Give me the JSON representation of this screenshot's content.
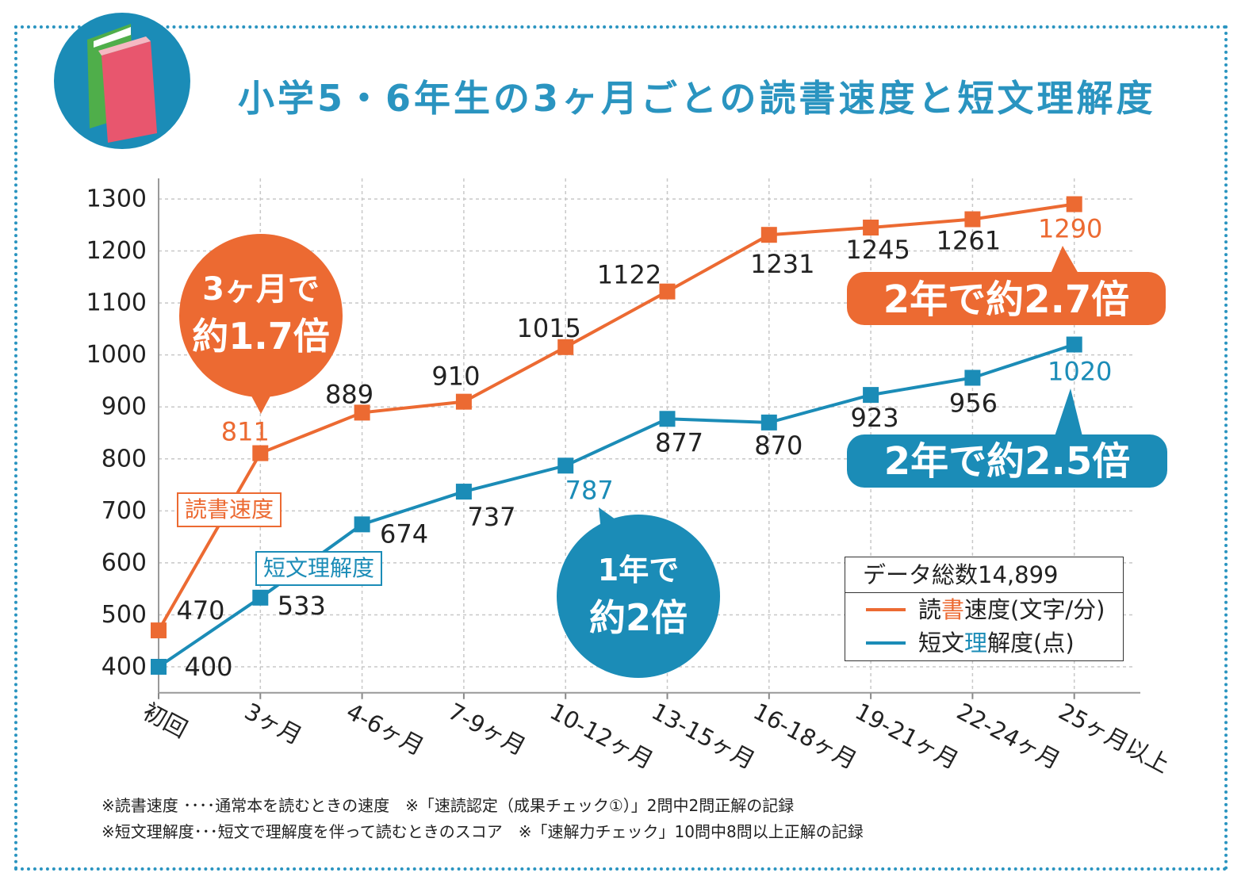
{
  "title": "小学5・6年生の3ヶ月ごとの読書速度と短文理解度",
  "icon": "books-icon",
  "colors": {
    "reading_speed": "#ec6a32",
    "comprehension": "#1b8cb7",
    "title": "#2a94c0",
    "frame": "#2a94c0"
  },
  "chart_data": {
    "type": "line",
    "title": "小学5・6年生の3ヶ月ごとの読書速度と短文理解度",
    "categories": [
      "初回",
      "3ヶ月",
      "4-6ヶ月",
      "7-9ヶ月",
      "10-12ヶ月",
      "13-15ヶ月",
      "16-18ヶ月",
      "19-21ヶ月",
      "22-24ヶ月",
      "25ヶ月以上"
    ],
    "yticks": [
      400,
      500,
      600,
      700,
      800,
      900,
      1000,
      1100,
      1200,
      1300
    ],
    "ylim": [
      350,
      1300
    ],
    "grid": true,
    "legend_placement": "bottom-right",
    "series": [
      {
        "name": "読書速度(文字/分)",
        "label": "読書速度",
        "color": "#ec6a32",
        "values": [
          470,
          811,
          889,
          910,
          1015,
          1122,
          1231,
          1245,
          1261,
          1290
        ]
      },
      {
        "name": "短文理解度(点)",
        "label": "短文理解度",
        "color": "#1b8cb7",
        "values": [
          400,
          533,
          674,
          737,
          787,
          877,
          870,
          923,
          956,
          1020
        ]
      }
    ],
    "annotations": [
      {
        "line1": "3ヶ月で",
        "line2": "約1.7倍",
        "series": 0
      },
      {
        "line1": "1年で",
        "line2": "約2倍",
        "series": 1
      },
      {
        "text": "2年で約2.7倍",
        "series": 0
      },
      {
        "text": "2年で約2.5倍",
        "series": 1
      }
    ]
  },
  "legend": {
    "header": "データ総数14,899",
    "items": [
      {
        "pre": "読",
        "hl": "書",
        "post": "速度(文字/分)"
      },
      {
        "pre": "短文",
        "hl": "理",
        "post": "解度(点)"
      }
    ]
  },
  "notes": [
    "※読書速度 ････通常本を読むときの速度　※「速読認定（成果チェック①）」2問中2問正解の記録",
    "※短文理解度･･･短文で理解度を伴って読むときのスコア　※「速解力チェック」10問中8問以上正解の記録"
  ]
}
